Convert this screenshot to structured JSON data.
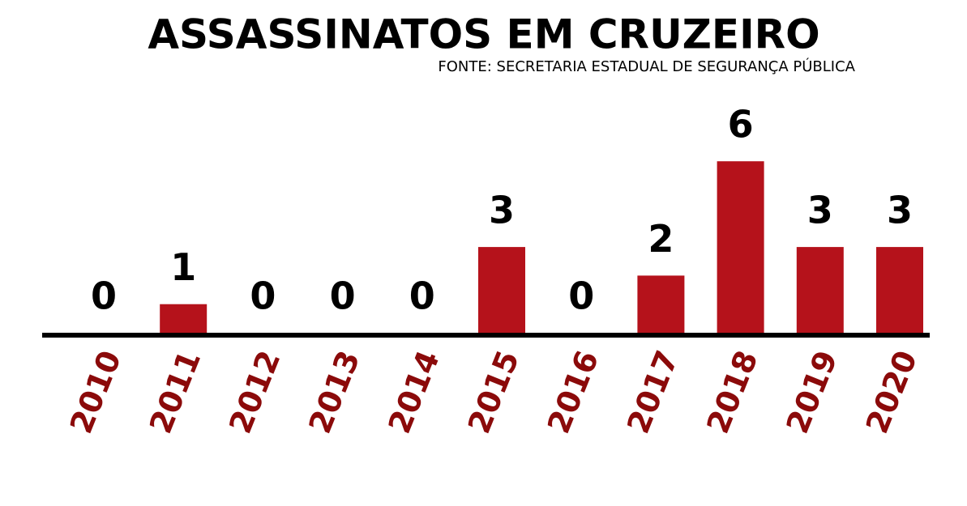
{
  "chart_data": {
    "type": "bar",
    "title": "ASSASSINATOS EM CRUZEIRO",
    "subtitle": "FONTE: SECRETARIA ESTADUAL DE SEGURANÇA PÚBLICA",
    "categories": [
      "2010",
      "2011",
      "2012",
      "2013",
      "2014",
      "2015",
      "2016",
      "2017",
      "2018",
      "2019",
      "2020"
    ],
    "values": [
      0,
      1,
      0,
      0,
      0,
      3,
      0,
      2,
      6,
      3,
      3
    ],
    "color": "#b5121b"
  }
}
